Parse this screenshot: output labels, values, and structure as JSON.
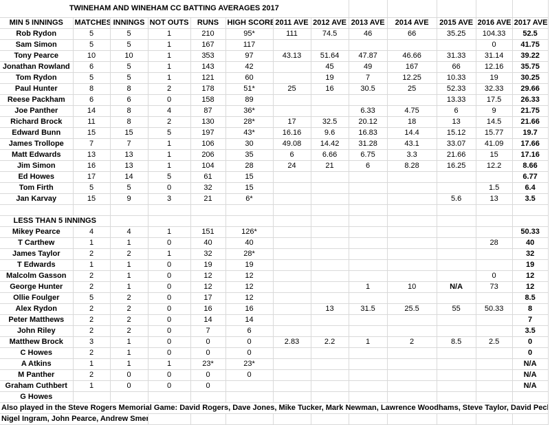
{
  "title": "TWINEHAM AND WINEHAM CC BATTING AVERAGES 2017",
  "colors": {
    "gridline": "#d9d9d9",
    "text": "#000000",
    "background": "#ffffff"
  },
  "table": {
    "header": [
      "MIN 5 INNINGS",
      "MATCHES",
      "INNINGS",
      "NOT OUTS",
      "RUNS",
      "HIGH SCORE",
      "2011 AVE",
      "2012 AVE",
      "2013 AVE",
      "2014 AVE",
      "2015 AVE",
      "2016 AVE",
      "2017 AVE"
    ],
    "min5": {
      "rows": [
        {
          "name": "Rob Rydon",
          "values": [
            "5",
            "5",
            "1",
            "210",
            "95*",
            "111",
            "74.5",
            "46",
            "66",
            "35.25",
            "104.33",
            "52.5"
          ]
        },
        {
          "name": "Sam Simon",
          "values": [
            "5",
            "5",
            "1",
            "167",
            "117",
            "",
            "",
            "",
            "",
            "",
            "0",
            "41.75"
          ]
        },
        {
          "name": "Tony Pearce",
          "values": [
            "10",
            "10",
            "1",
            "353",
            "97",
            "43.13",
            "51.64",
            "47.87",
            "46.66",
            "31.33",
            "31.14",
            "39.22"
          ]
        },
        {
          "name": "Jonathan Rowland",
          "values": [
            "6",
            "5",
            "1",
            "143",
            "42",
            "",
            "45",
            "49",
            "167",
            "66",
            "12.16",
            "35.75"
          ]
        },
        {
          "name": "Tom Rydon",
          "values": [
            "5",
            "5",
            "1",
            "121",
            "60",
            "",
            "19",
            "7",
            "12.25",
            "10.33",
            "19",
            "30.25"
          ]
        },
        {
          "name": "Paul Hunter",
          "values": [
            "8",
            "8",
            "2",
            "178",
            "51*",
            "25",
            "16",
            "30.5",
            "25",
            "52.33",
            "32.33",
            "29.66"
          ]
        },
        {
          "name": "Reese Packham",
          "values": [
            "6",
            "6",
            "0",
            "158",
            "89",
            "",
            "",
            "",
            "",
            "13.33",
            "17.5",
            "26.33"
          ]
        },
        {
          "name": "Joe Panther",
          "values": [
            "14",
            "8",
            "4",
            "87",
            "36*",
            "",
            "",
            "6.33",
            "4.75",
            "6",
            "9",
            "21.75"
          ]
        },
        {
          "name": "Richard Brock",
          "values": [
            "11",
            "8",
            "2",
            "130",
            "28*",
            "17",
            "32.5",
            "20.12",
            "18",
            "13",
            "14.5",
            "21.66"
          ]
        },
        {
          "name": "Edward Bunn",
          "values": [
            "15",
            "15",
            "5",
            "197",
            "43*",
            "16.16",
            "9.6",
            "16.83",
            "14.4",
            "15.12",
            "15.77",
            "19.7"
          ]
        },
        {
          "name": "James Trollope",
          "values": [
            "7",
            "7",
            "1",
            "106",
            "30",
            "49.08",
            "14.42",
            "31.28",
            "43.1",
            "33.07",
            "41.09",
            "17.66"
          ]
        },
        {
          "name": "Matt Edwards",
          "values": [
            "13",
            "13",
            "1",
            "206",
            "35",
            "6",
            "6.66",
            "6.75",
            "3.3",
            "21.66",
            "15",
            "17.16"
          ]
        },
        {
          "name": "Jim Simon",
          "values": [
            "16",
            "13",
            "1",
            "104",
            "28",
            "24",
            "21",
            "6",
            "8.28",
            "16.25",
            "12.2",
            "8.66"
          ]
        },
        {
          "name": "Ed Howes",
          "values": [
            "17",
            "14",
            "5",
            "61",
            "15",
            "",
            "",
            "",
            "",
            "",
            "",
            "6.77"
          ]
        },
        {
          "name": "Tom Firth",
          "values": [
            "5",
            "5",
            "0",
            "32",
            "15",
            "",
            "",
            "",
            "",
            "",
            "1.5",
            "6.4"
          ]
        },
        {
          "name": "Jan Karvay",
          "values": [
            "15",
            "9",
            "3",
            "21",
            "6*",
            "",
            "",
            "",
            "",
            "5.6",
            "13",
            "3.5"
          ]
        }
      ]
    },
    "less_than_5": {
      "label": "LESS THAN 5 INNINGS",
      "rows": [
        {
          "name": "Mikey Pearce",
          "values": [
            "4",
            "4",
            "1",
            "151",
            "126*",
            "",
            "",
            "",
            "",
            "",
            "",
            "50.33"
          ]
        },
        {
          "name": "T Carthew",
          "values": [
            "1",
            "1",
            "0",
            "40",
            "40",
            "",
            "",
            "",
            "",
            "",
            "28",
            "40"
          ]
        },
        {
          "name": "James Taylor",
          "values": [
            "2",
            "2",
            "1",
            "32",
            "28*",
            "",
            "",
            "",
            "",
            "",
            "",
            "32"
          ]
        },
        {
          "name": "T Edwards",
          "values": [
            "1",
            "1",
            "0",
            "19",
            "19",
            "",
            "",
            "",
            "",
            "",
            "",
            "19"
          ]
        },
        {
          "name": "Malcolm Gasson",
          "values": [
            "2",
            "1",
            "0",
            "12",
            "12",
            "",
            "",
            "",
            "",
            "",
            "0",
            "12"
          ]
        },
        {
          "name": "George Hunter",
          "values": [
            "2",
            "1",
            "0",
            "12",
            "12",
            "",
            "",
            "1",
            "10",
            "N/A",
            "73",
            "12"
          ]
        },
        {
          "name": "Ollie Foulger",
          "values": [
            "5",
            "2",
            "0",
            "17",
            "12",
            "",
            "",
            "",
            "",
            "",
            "",
            "8.5"
          ]
        },
        {
          "name": "Alex Rydon",
          "values": [
            "2",
            "2",
            "0",
            "16",
            "16",
            "",
            "13",
            "31.5",
            "25.5",
            "55",
            "50.33",
            "8"
          ]
        },
        {
          "name": "Peter Matthews",
          "values": [
            "2",
            "2",
            "0",
            "14",
            "14",
            "",
            "",
            "",
            "",
            "",
            "",
            "7"
          ]
        },
        {
          "name": "John Riley",
          "values": [
            "2",
            "2",
            "0",
            "7",
            "6",
            "",
            "",
            "",
            "",
            "",
            "",
            "3.5"
          ]
        },
        {
          "name": "Matthew Brock",
          "values": [
            "3",
            "1",
            "0",
            "0",
            "0",
            "2.83",
            "2.2",
            "1",
            "2",
            "8.5",
            "2.5",
            "0"
          ]
        },
        {
          "name": "C Howes",
          "values": [
            "2",
            "1",
            "0",
            "0",
            "0",
            "",
            "",
            "",
            "",
            "",
            "",
            "0"
          ]
        },
        {
          "name": "A Atkins",
          "values": [
            "1",
            "1",
            "1",
            "23*",
            "23*",
            "",
            "",
            "",
            "",
            "",
            "",
            "N/A"
          ]
        },
        {
          "name": "M Panther",
          "values": [
            "2",
            "0",
            "0",
            "0",
            "0",
            "",
            "",
            "",
            "",
            "",
            "",
            "N/A"
          ]
        },
        {
          "name": "Graham Cuthbert",
          "values": [
            "1",
            "0",
            "0",
            "0",
            "",
            "",
            "",
            "",
            "",
            "",
            "",
            "N/A"
          ]
        },
        {
          "name": "G Howes",
          "values": [
            "",
            "",
            "",
            "",
            "",
            "",
            "",
            "",
            "",
            "",
            "",
            ""
          ]
        }
      ]
    }
  },
  "footer": {
    "line1": "Also played in the Steve Rogers Memorial Game:  David Rogers, Dave Jones, Mike Tucker, Mark Newman, Lawrence Woodhams, Steve Taylor, David Peck",
    "line2": "Nigel Ingram, John Pearce, Andrew Smerdon"
  }
}
